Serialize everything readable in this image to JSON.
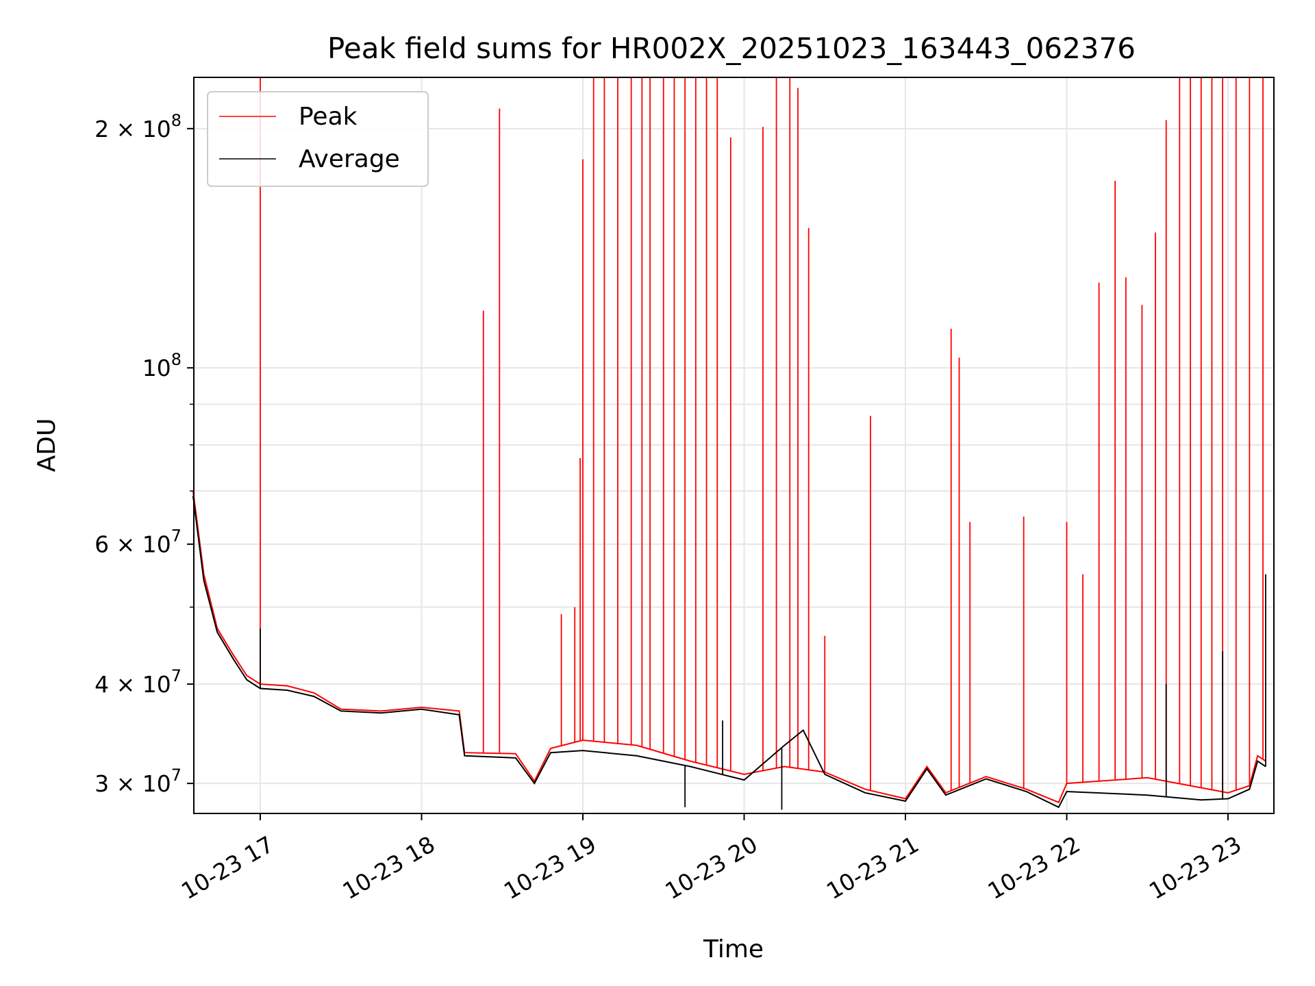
{
  "chart_data": {
    "type": "line",
    "title": "Peak field sums for HR002X_20251023_163443_062376",
    "xlabel": "Time",
    "ylabel": "ADU",
    "yscale": "log",
    "ylim": [
      27500000,
      232000000
    ],
    "xlim": [
      "2025-10-23 16:35",
      "2025-10-23 23:14"
    ],
    "grid": true,
    "legend_placement": "top-left",
    "x_ticks": [
      {
        "value": "2025-10-23 17:00",
        "label": "10-23 17"
      },
      {
        "value": "2025-10-23 18:00",
        "label": "10-23 18"
      },
      {
        "value": "2025-10-23 19:00",
        "label": "10-23 19"
      },
      {
        "value": "2025-10-23 20:00",
        "label": "10-23 20"
      },
      {
        "value": "2025-10-23 21:00",
        "label": "10-23 21"
      },
      {
        "value": "2025-10-23 22:00",
        "label": "10-23 22"
      },
      {
        "value": "2025-10-23 23:00",
        "label": "10-23 23"
      }
    ],
    "y_ticks": [
      {
        "value": 30000000,
        "base": "3 × 10",
        "exp": "7"
      },
      {
        "value": 40000000,
        "base": "4 × 10",
        "exp": "7"
      },
      {
        "value": 60000000,
        "base": "6 × 10",
        "exp": "7"
      },
      {
        "value": 100000000,
        "base": "10",
        "exp": "8"
      },
      {
        "value": 200000000,
        "base": "2 × 10",
        "exp": "8"
      }
    ],
    "series": [
      {
        "name": "Peak",
        "color": "#ff0000",
        "baseline": [
          [
            "2025-10-23 16:35",
            70000000
          ],
          [
            "2025-10-23 16:39",
            55000000
          ],
          [
            "2025-10-23 16:44",
            47000000
          ],
          [
            "2025-10-23 16:50",
            43500000
          ],
          [
            "2025-10-23 16:55",
            41000000
          ],
          [
            "2025-10-23 17:00",
            40000000
          ],
          [
            "2025-10-23 17:10",
            39800000
          ],
          [
            "2025-10-23 17:20",
            39000000
          ],
          [
            "2025-10-23 17:30",
            37200000
          ],
          [
            "2025-10-23 17:45",
            37000000
          ],
          [
            "2025-10-23 18:00",
            37400000
          ],
          [
            "2025-10-23 18:14",
            37000000
          ],
          [
            "2025-10-23 18:16",
            32800000
          ],
          [
            "2025-10-23 18:35",
            32700000
          ],
          [
            "2025-10-23 18:42",
            30200000
          ],
          [
            "2025-10-23 18:48",
            33200000
          ],
          [
            "2025-10-23 19:00",
            34000000
          ],
          [
            "2025-10-23 19:20",
            33500000
          ],
          [
            "2025-10-23 19:40",
            32000000
          ],
          [
            "2025-10-23 20:00",
            30800000
          ],
          [
            "2025-10-23 20:15",
            31500000
          ],
          [
            "2025-10-23 20:30",
            31000000
          ],
          [
            "2025-10-23 20:45",
            29500000
          ],
          [
            "2025-10-23 21:00",
            28700000
          ],
          [
            "2025-10-23 21:08",
            31500000
          ],
          [
            "2025-10-23 21:15",
            29200000
          ],
          [
            "2025-10-23 21:30",
            30600000
          ],
          [
            "2025-10-23 21:45",
            29500000
          ],
          [
            "2025-10-23 21:57",
            28400000
          ],
          [
            "2025-10-23 22:00",
            30000000
          ],
          [
            "2025-10-23 22:30",
            30500000
          ],
          [
            "2025-10-23 23:00",
            29200000
          ],
          [
            "2025-10-23 23:08",
            29800000
          ],
          [
            "2025-10-23 23:11",
            32500000
          ],
          [
            "2025-10-23 23:14",
            32000000
          ]
        ],
        "spikes": [
          [
            "2025-10-23 17:00",
            232000000
          ],
          [
            "2025-10-23 18:23",
            118000000
          ],
          [
            "2025-10-23 18:29",
            212000000
          ],
          [
            "2025-10-23 18:52",
            49000000
          ],
          [
            "2025-10-23 18:57",
            50000000
          ],
          [
            "2025-10-23 18:59",
            77000000
          ],
          [
            "2025-10-23 19:00",
            183000000
          ],
          [
            "2025-10-23 19:04",
            232000000
          ],
          [
            "2025-10-23 19:08",
            232000000
          ],
          [
            "2025-10-23 19:13",
            232000000
          ],
          [
            "2025-10-23 19:18",
            232000000
          ],
          [
            "2025-10-23 19:22",
            232000000
          ],
          [
            "2025-10-23 19:25",
            232000000
          ],
          [
            "2025-10-23 19:30",
            232000000
          ],
          [
            "2025-10-23 19:34",
            232000000
          ],
          [
            "2025-10-23 19:38",
            232000000
          ],
          [
            "2025-10-23 19:42",
            232000000
          ],
          [
            "2025-10-23 19:46",
            232000000
          ],
          [
            "2025-10-23 19:50",
            232000000
          ],
          [
            "2025-10-23 19:55",
            195000000
          ],
          [
            "2025-10-23 20:07",
            201000000
          ],
          [
            "2025-10-23 20:12",
            232000000
          ],
          [
            "2025-10-23 20:17",
            232000000
          ],
          [
            "2025-10-23 20:20",
            225000000
          ],
          [
            "2025-10-23 20:24",
            150000000
          ],
          [
            "2025-10-23 20:30",
            46000000
          ],
          [
            "2025-10-23 20:47",
            87000000
          ],
          [
            "2025-10-23 21:17",
            112000000
          ],
          [
            "2025-10-23 21:20",
            103000000
          ],
          [
            "2025-10-23 21:24",
            64000000
          ],
          [
            "2025-10-23 21:44",
            65000000
          ],
          [
            "2025-10-23 22:00",
            64000000
          ],
          [
            "2025-10-23 22:06",
            55000000
          ],
          [
            "2025-10-23 22:12",
            128000000
          ],
          [
            "2025-10-23 22:18",
            172000000
          ],
          [
            "2025-10-23 22:22",
            130000000
          ],
          [
            "2025-10-23 22:28",
            120000000
          ],
          [
            "2025-10-23 22:33",
            148000000
          ],
          [
            "2025-10-23 22:37",
            205000000
          ],
          [
            "2025-10-23 22:42",
            232000000
          ],
          [
            "2025-10-23 22:46",
            232000000
          ],
          [
            "2025-10-23 22:50",
            232000000
          ],
          [
            "2025-10-23 22:54",
            232000000
          ],
          [
            "2025-10-23 22:58",
            232000000
          ],
          [
            "2025-10-23 23:03",
            232000000
          ],
          [
            "2025-10-23 23:08",
            232000000
          ],
          [
            "2025-10-23 23:13",
            232000000
          ]
        ]
      },
      {
        "name": "Average",
        "color": "#000000",
        "baseline": [
          [
            "2025-10-23 16:35",
            69000000
          ],
          [
            "2025-10-23 16:39",
            54000000
          ],
          [
            "2025-10-23 16:44",
            46500000
          ],
          [
            "2025-10-23 16:50",
            43000000
          ],
          [
            "2025-10-23 16:55",
            40500000
          ],
          [
            "2025-10-23 17:00",
            39500000
          ],
          [
            "2025-10-23 17:10",
            39300000
          ],
          [
            "2025-10-23 17:20",
            38600000
          ],
          [
            "2025-10-23 17:30",
            37000000
          ],
          [
            "2025-10-23 17:45",
            36800000
          ],
          [
            "2025-10-23 18:00",
            37200000
          ],
          [
            "2025-10-23 18:14",
            36600000
          ],
          [
            "2025-10-23 18:16",
            32500000
          ],
          [
            "2025-10-23 18:35",
            32300000
          ],
          [
            "2025-10-23 18:42",
            30000000
          ],
          [
            "2025-10-23 18:48",
            32800000
          ],
          [
            "2025-10-23 19:00",
            33000000
          ],
          [
            "2025-10-23 19:20",
            32500000
          ],
          [
            "2025-10-23 19:40",
            31500000
          ],
          [
            "2025-10-23 20:00",
            30300000
          ],
          [
            "2025-10-23 20:15",
            33500000
          ],
          [
            "2025-10-23 20:22",
            35000000
          ],
          [
            "2025-10-23 20:30",
            30800000
          ],
          [
            "2025-10-23 20:45",
            29200000
          ],
          [
            "2025-10-23 21:00",
            28500000
          ],
          [
            "2025-10-23 21:08",
            31300000
          ],
          [
            "2025-10-23 21:15",
            29000000
          ],
          [
            "2025-10-23 21:30",
            30400000
          ],
          [
            "2025-10-23 21:45",
            29300000
          ],
          [
            "2025-10-23 21:57",
            28000000
          ],
          [
            "2025-10-23 22:00",
            29300000
          ],
          [
            "2025-10-23 22:30",
            29000000
          ],
          [
            "2025-10-23 22:50",
            28600000
          ],
          [
            "2025-10-23 23:00",
            28700000
          ],
          [
            "2025-10-23 23:08",
            29500000
          ],
          [
            "2025-10-23 23:11",
            32000000
          ],
          [
            "2025-10-23 23:14",
            31500000
          ]
        ],
        "spikes": [
          [
            "2025-10-23 17:00",
            47000000
          ],
          [
            "2025-10-23 19:38",
            28000000
          ],
          [
            "2025-10-23 19:52",
            36000000
          ],
          [
            "2025-10-23 20:14",
            27800000
          ],
          [
            "2025-10-23 22:37",
            40000000
          ],
          [
            "2025-10-23 22:58",
            44000000
          ],
          [
            "2025-10-23 23:14",
            55000000
          ]
        ]
      }
    ]
  }
}
